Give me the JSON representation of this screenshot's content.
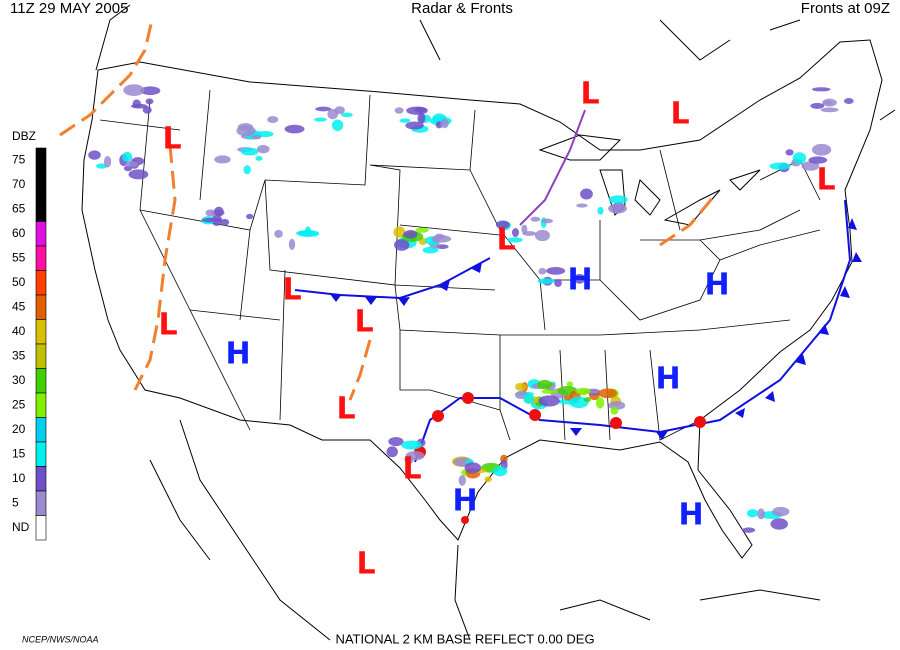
{
  "header": {
    "left": "11Z  29 MAY  2005",
    "center": "Radar & Fronts",
    "right": "Fronts at 09Z"
  },
  "legend": {
    "title": "DBZ",
    "levels": [
      {
        "label": "75",
        "color": "#000000"
      },
      {
        "label": "70",
        "color": "#000000"
      },
      {
        "label": "65",
        "color": "#000000"
      },
      {
        "label": "60",
        "color": "#e010e0"
      },
      {
        "label": "55",
        "color": "#ff10a0"
      },
      {
        "label": "50",
        "color": "#ff4000"
      },
      {
        "label": "45",
        "color": "#e06000"
      },
      {
        "label": "40",
        "color": "#d8c000"
      },
      {
        "label": "35",
        "color": "#c0c000"
      },
      {
        "label": "30",
        "color": "#40d000"
      },
      {
        "label": "25",
        "color": "#80f000"
      },
      {
        "label": "20",
        "color": "#00d0f0"
      },
      {
        "label": "15",
        "color": "#00f0f0"
      },
      {
        "label": "10",
        "color": "#7050c8"
      },
      {
        "label": "5",
        "color": "#9a8ad0"
      },
      {
        "label": "ND",
        "color": "#ffffff"
      }
    ]
  },
  "pressure_centers": [
    {
      "label": "L",
      "color": "#ff1010"
    },
    {
      "label": "L",
      "color": "#ff1010"
    },
    {
      "label": "L",
      "color": "#ff1010"
    },
    {
      "label": "L",
      "color": "#ff1010"
    },
    {
      "label": "L",
      "color": "#ff1010"
    },
    {
      "label": "L",
      "color": "#ff1010"
    },
    {
      "label": "L",
      "color": "#ff1010"
    },
    {
      "label": "L",
      "color": "#ff1010"
    },
    {
      "label": "L",
      "color": "#ff1010"
    },
    {
      "label": "L",
      "color": "#ff1010"
    },
    {
      "label": "L",
      "color": "#ff1010"
    },
    {
      "label": "H",
      "color": "#1020ff"
    },
    {
      "label": "H",
      "color": "#1020ff"
    },
    {
      "label": "H",
      "color": "#1020ff"
    },
    {
      "label": "H",
      "color": "#1020ff"
    },
    {
      "label": "H",
      "color": "#1020ff"
    },
    {
      "label": "H",
      "color": "#1020ff"
    }
  ],
  "footer": {
    "credit": "NCEP/NWS/NOAA",
    "product": "NATIONAL 2 KM BASE REFLECT 0.00 DEG"
  }
}
